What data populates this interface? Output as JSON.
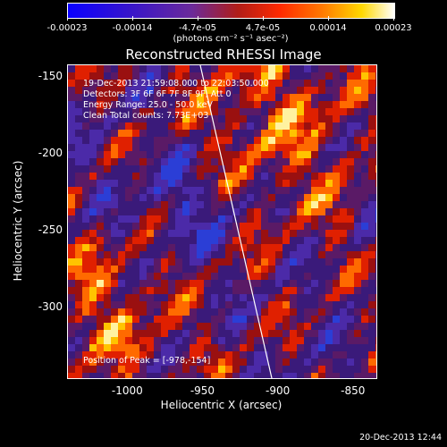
{
  "colorbar": {
    "labels": [
      "-0.00023",
      "-0.00014",
      "-4.7e-05",
      "4.7e-05",
      "0.00014",
      "0.00023"
    ],
    "unit": "(photons cm⁻² s⁻¹ asec⁻²)"
  },
  "title": "Reconstructed RHESSI Image",
  "info": {
    "time": "19-Dec-2013 21:59:08.000 to 22:03:50.000",
    "detectors": "Detectors: 3F 6F 6F 7F 8F 9F, Att 0",
    "energy": "Energy Range: 25.0 - 50.0 keV",
    "clean": "Clean     Total counts: 7.73E+03",
    "peak": "Position of Peak = [-978,-154]"
  },
  "axes": {
    "xlabel": "Heliocentric X (arcsec)",
    "ylabel": "Heliocentric Y (arcsec)",
    "xticks": [
      "-1000",
      "-950",
      "-900",
      "-850"
    ],
    "yticks": [
      "-150",
      "-200",
      "-250",
      "-300"
    ],
    "x_values": [
      -1000,
      -950,
      -900,
      -850
    ],
    "y_values": [
      -150,
      -200,
      -250,
      -300
    ],
    "xlim": [
      -1040,
      -835
    ],
    "ylim": [
      -345,
      -142
    ]
  },
  "footer": "20-Dec-2013 12:44"
}
